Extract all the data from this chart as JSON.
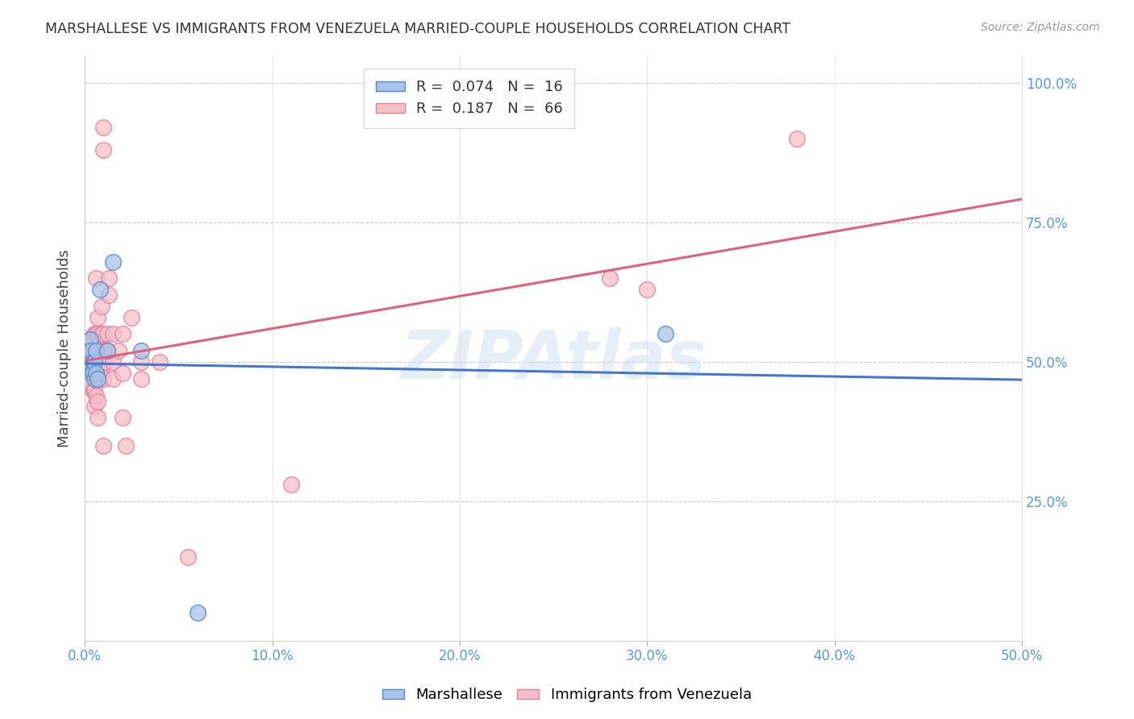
{
  "title": "MARSHALLESE VS IMMIGRANTS FROM VENEZUELA MARRIED-COUPLE HOUSEHOLDS CORRELATION CHART",
  "source": "Source: ZipAtlas.com",
  "xlim": [
    0.0,
    0.5
  ],
  "ylim": [
    0.0,
    1.05
  ],
  "watermark": "ZIPAtlas",
  "blue_R": 0.074,
  "blue_N": 16,
  "pink_R": 0.187,
  "pink_N": 66,
  "blue_color": "#a8c4e8",
  "pink_color": "#f5bfca",
  "blue_edge_color": "#5588cc",
  "pink_edge_color": "#e8809a",
  "blue_line_color": "#4477cc",
  "pink_line_color": "#e06080",
  "blue_scatter": [
    [
      0.002,
      0.5
    ],
    [
      0.003,
      0.54
    ],
    [
      0.003,
      0.52
    ],
    [
      0.004,
      0.5
    ],
    [
      0.004,
      0.48
    ],
    [
      0.005,
      0.5
    ],
    [
      0.005,
      0.47
    ],
    [
      0.006,
      0.52
    ],
    [
      0.006,
      0.48
    ],
    [
      0.007,
      0.47
    ],
    [
      0.008,
      0.63
    ],
    [
      0.012,
      0.52
    ],
    [
      0.015,
      0.68
    ],
    [
      0.03,
      0.52
    ],
    [
      0.31,
      0.55
    ],
    [
      0.06,
      0.05
    ]
  ],
  "pink_scatter": [
    [
      0.002,
      0.52
    ],
    [
      0.002,
      0.5
    ],
    [
      0.003,
      0.54
    ],
    [
      0.003,
      0.52
    ],
    [
      0.003,
      0.5
    ],
    [
      0.003,
      0.48
    ],
    [
      0.003,
      0.46
    ],
    [
      0.004,
      0.53
    ],
    [
      0.004,
      0.5
    ],
    [
      0.004,
      0.48
    ],
    [
      0.004,
      0.45
    ],
    [
      0.005,
      0.55
    ],
    [
      0.005,
      0.52
    ],
    [
      0.005,
      0.5
    ],
    [
      0.005,
      0.48
    ],
    [
      0.005,
      0.45
    ],
    [
      0.005,
      0.42
    ],
    [
      0.006,
      0.65
    ],
    [
      0.006,
      0.55
    ],
    [
      0.006,
      0.52
    ],
    [
      0.006,
      0.5
    ],
    [
      0.006,
      0.47
    ],
    [
      0.006,
      0.44
    ],
    [
      0.007,
      0.58
    ],
    [
      0.007,
      0.55
    ],
    [
      0.007,
      0.52
    ],
    [
      0.007,
      0.5
    ],
    [
      0.007,
      0.47
    ],
    [
      0.007,
      0.43
    ],
    [
      0.007,
      0.4
    ],
    [
      0.008,
      0.53
    ],
    [
      0.008,
      0.5
    ],
    [
      0.008,
      0.47
    ],
    [
      0.009,
      0.6
    ],
    [
      0.009,
      0.55
    ],
    [
      0.009,
      0.52
    ],
    [
      0.009,
      0.48
    ],
    [
      0.01,
      0.55
    ],
    [
      0.01,
      0.5
    ],
    [
      0.01,
      0.47
    ],
    [
      0.011,
      0.52
    ],
    [
      0.011,
      0.5
    ],
    [
      0.012,
      0.55
    ],
    [
      0.012,
      0.52
    ],
    [
      0.013,
      0.65
    ],
    [
      0.013,
      0.62
    ],
    [
      0.015,
      0.55
    ],
    [
      0.015,
      0.5
    ],
    [
      0.015,
      0.47
    ],
    [
      0.018,
      0.52
    ],
    [
      0.02,
      0.55
    ],
    [
      0.02,
      0.48
    ],
    [
      0.02,
      0.4
    ],
    [
      0.022,
      0.35
    ],
    [
      0.025,
      0.58
    ],
    [
      0.03,
      0.5
    ],
    [
      0.03,
      0.47
    ],
    [
      0.04,
      0.5
    ],
    [
      0.055,
      0.15
    ],
    [
      0.11,
      0.28
    ],
    [
      0.28,
      0.65
    ],
    [
      0.3,
      0.63
    ],
    [
      0.38,
      0.9
    ],
    [
      0.01,
      0.92
    ],
    [
      0.01,
      0.88
    ],
    [
      0.01,
      0.35
    ]
  ]
}
